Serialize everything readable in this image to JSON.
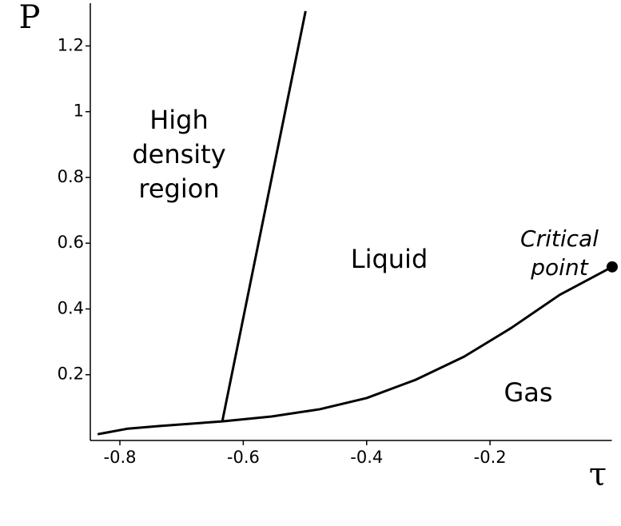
{
  "chart_data": {
    "type": "line",
    "xlabel": "τ",
    "ylabel": "P",
    "xlim": [
      -0.85,
      0
    ],
    "ylim": [
      0,
      1.33
    ],
    "xticks": [
      -0.8,
      -0.6,
      -0.4,
      -0.2
    ],
    "yticks": [
      0.2,
      0.4,
      0.6,
      0.8,
      1,
      1.2
    ],
    "series": [
      {
        "color": "#000000",
        "x": [
          -0.836,
          -0.787,
          -0.735,
          -0.634,
          -0.554,
          -0.476,
          -0.4,
          -0.32,
          -0.242,
          -0.165,
          -0.087,
          -0.002
        ],
        "values": [
          0.019,
          0.036,
          0.044,
          0.058,
          0.073,
          0.095,
          0.129,
          0.185,
          0.255,
          0.343,
          0.443,
          0.528
        ]
      },
      {
        "color": "#000000",
        "x": [
          -0.634,
          -0.499
        ],
        "values": [
          0.058,
          1.306
        ]
      },
      {
        "color": "#000000",
        "marker": true,
        "x": [
          -0.002
        ],
        "values": [
          0.528
        ]
      }
    ],
    "annotations": [
      {
        "lines": [
          "High",
          "density",
          "region"
        ]
      },
      {
        "lines": [
          "Liquid"
        ]
      },
      {
        "lines": [
          "Gas"
        ]
      },
      {
        "lines": [
          "Critical",
          "point"
        ],
        "italic": true
      }
    ]
  }
}
